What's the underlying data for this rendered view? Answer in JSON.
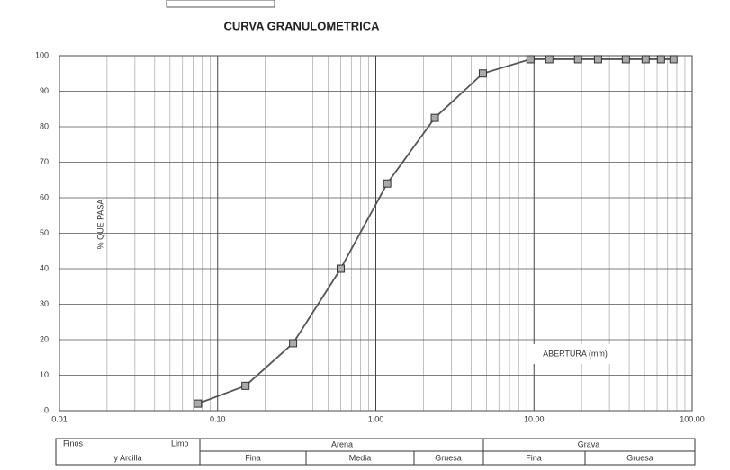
{
  "chart_data": {
    "type": "line",
    "title": "CURVA GRANULOMETRICA",
    "y_label": "% QUE PASA",
    "x_label": "ABERTURA (mm)",
    "log_x": true,
    "grid": true,
    "xlim": [
      0.01,
      100
    ],
    "ylim": [
      0,
      100
    ],
    "xticks": [
      {
        "value": 0.01,
        "label": "0.01"
      },
      {
        "value": 0.1,
        "label": "0.10"
      },
      {
        "value": 1,
        "label": "1.00"
      },
      {
        "value": 10,
        "label": "10.00"
      },
      {
        "value": 100,
        "label": "100.00"
      }
    ],
    "yticks": [
      0,
      10,
      20,
      30,
      40,
      50,
      60,
      70,
      80,
      90,
      100
    ],
    "series": [
      {
        "name": "% QUE PASA",
        "color": "#555555",
        "x": [
          0.075,
          0.15,
          0.3,
          0.6,
          1.18,
          2.36,
          4.75,
          9.5,
          12.5,
          19,
          25.4,
          38.1,
          50.8,
          63.5,
          76.2
        ],
        "values": [
          2,
          7,
          19,
          40,
          64,
          82.5,
          95,
          99,
          99,
          99,
          99,
          99,
          99,
          99,
          99
        ]
      }
    ],
    "classification": {
      "fines": [
        "Finos",
        "Limo",
        "y Arcilla"
      ],
      "sand": {
        "name": "Arena",
        "parts": [
          "Fina",
          "Media",
          "Gruesa"
        ]
      },
      "gravel": {
        "name": "Grava",
        "parts": [
          "Fina",
          "Gruesa"
        ]
      }
    }
  }
}
